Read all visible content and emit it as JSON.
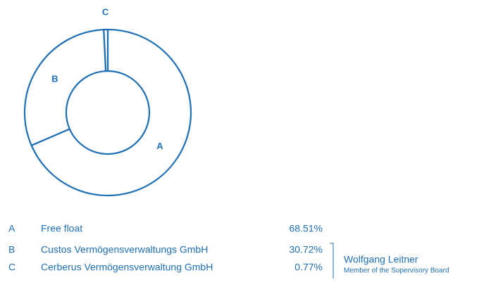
{
  "chart_data": {
    "type": "pie",
    "donut": true,
    "labels": [
      "A",
      "B",
      "C"
    ],
    "categories": [
      "Free float",
      "Custos Vermögensverwaltungs GmbH",
      "Cerberus Vermögensverwaltung GmbH"
    ],
    "values": [
      68.51,
      30.72,
      0.77
    ],
    "value_labels": [
      "68.51%",
      "30.72%",
      "0.77%"
    ],
    "color": "#1f6fb5",
    "annotation": {
      "title": "Wolfgang Leitner",
      "subtitle": "Member of the Supervisory Board"
    }
  }
}
